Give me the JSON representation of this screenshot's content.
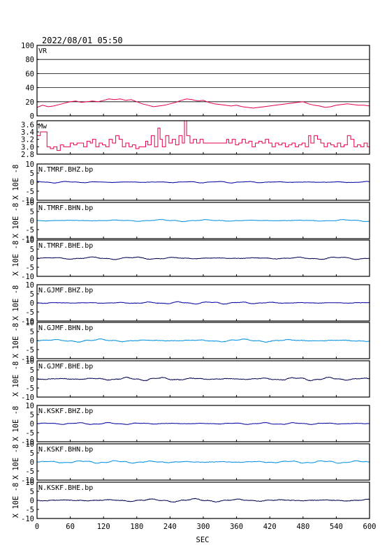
{
  "chart_data": {
    "type": "line",
    "title": "2022/08/01 05:50",
    "xlabel": "SEC",
    "xlim": [
      0,
      600
    ],
    "xticks": [
      "0",
      "60",
      "120",
      "180",
      "240",
      "300",
      "360",
      "420",
      "480",
      "540",
      "600"
    ],
    "colors": {
      "vr_mw": "#e4004a",
      "bhz": "#0000a0",
      "bhn": "#0090e0",
      "bhe": "#000050"
    },
    "panels": [
      {
        "label": "VR",
        "ylim": [
          0,
          100
        ],
        "yticks": [
          "0",
          "20",
          "40",
          "60",
          "80",
          "100"
        ],
        "grid": true,
        "series_color": "vr_mw",
        "points": [
          [
            0,
            12
          ],
          [
            10,
            15
          ],
          [
            20,
            13
          ],
          [
            30,
            14
          ],
          [
            40,
            16
          ],
          [
            50,
            18
          ],
          [
            60,
            20
          ],
          [
            70,
            21
          ],
          [
            80,
            19
          ],
          [
            90,
            20
          ],
          [
            100,
            21
          ],
          [
            110,
            20
          ],
          [
            120,
            22
          ],
          [
            130,
            24
          ],
          [
            140,
            23
          ],
          [
            150,
            24
          ],
          [
            160,
            22
          ],
          [
            170,
            23
          ],
          [
            180,
            20
          ],
          [
            190,
            17
          ],
          [
            200,
            15
          ],
          [
            210,
            13
          ],
          [
            220,
            14
          ],
          [
            230,
            15
          ],
          [
            240,
            17
          ],
          [
            250,
            19
          ],
          [
            260,
            22
          ],
          [
            270,
            24
          ],
          [
            280,
            23
          ],
          [
            290,
            21
          ],
          [
            300,
            22
          ],
          [
            310,
            19
          ],
          [
            320,
            17
          ],
          [
            330,
            16
          ],
          [
            340,
            15
          ],
          [
            350,
            14
          ],
          [
            360,
            15
          ],
          [
            370,
            13
          ],
          [
            380,
            12
          ],
          [
            390,
            11
          ],
          [
            400,
            12
          ],
          [
            410,
            13
          ],
          [
            420,
            14
          ],
          [
            430,
            15
          ],
          [
            440,
            16
          ],
          [
            450,
            17
          ],
          [
            460,
            18
          ],
          [
            470,
            19
          ],
          [
            480,
            20
          ],
          [
            490,
            17
          ],
          [
            500,
            15
          ],
          [
            510,
            14
          ],
          [
            520,
            12
          ],
          [
            530,
            13
          ],
          [
            540,
            15
          ],
          [
            550,
            16
          ],
          [
            560,
            17
          ],
          [
            570,
            16
          ],
          [
            580,
            15
          ],
          [
            590,
            15
          ],
          [
            600,
            14
          ]
        ]
      },
      {
        "label": "Mw",
        "ylim": [
          2.8,
          3.7
        ],
        "yticks": [
          "2.8",
          "3.0",
          "3.2",
          "3.4",
          "3.6"
        ],
        "grid": false,
        "series_color": "vr_mw",
        "points": [
          [
            0,
            3.3
          ],
          [
            6,
            3.4
          ],
          [
            12,
            3.4
          ],
          [
            18,
            3.0
          ],
          [
            24,
            2.95
          ],
          [
            30,
            3.0
          ],
          [
            36,
            2.9
          ],
          [
            42,
            3.05
          ],
          [
            48,
            3.0
          ],
          [
            54,
            3.0
          ],
          [
            60,
            3.1
          ],
          [
            66,
            3.05
          ],
          [
            72,
            3.1
          ],
          [
            78,
            3.1
          ],
          [
            84,
            3.0
          ],
          [
            90,
            3.15
          ],
          [
            96,
            3.1
          ],
          [
            100,
            3.2
          ],
          [
            106,
            3.0
          ],
          [
            112,
            3.1
          ],
          [
            118,
            3.05
          ],
          [
            124,
            3.0
          ],
          [
            130,
            3.2
          ],
          [
            136,
            3.1
          ],
          [
            142,
            3.3
          ],
          [
            148,
            3.2
          ],
          [
            154,
            3.0
          ],
          [
            160,
            3.1
          ],
          [
            166,
            3.0
          ],
          [
            172,
            3.05
          ],
          [
            178,
            2.95
          ],
          [
            184,
            3.0
          ],
          [
            190,
            3.0
          ],
          [
            196,
            3.15
          ],
          [
            200,
            3.05
          ],
          [
            206,
            3.3
          ],
          [
            212,
            3.0
          ],
          [
            218,
            3.5
          ],
          [
            222,
            3.2
          ],
          [
            226,
            3.0
          ],
          [
            232,
            3.3
          ],
          [
            238,
            3.1
          ],
          [
            244,
            3.2
          ],
          [
            250,
            3.05
          ],
          [
            256,
            3.3
          ],
          [
            262,
            3.1
          ],
          [
            266,
            3.7
          ],
          [
            270,
            3.3
          ],
          [
            276,
            3.1
          ],
          [
            282,
            3.2
          ],
          [
            288,
            3.1
          ],
          [
            294,
            3.2
          ],
          [
            300,
            3.1
          ],
          [
            306,
            3.1
          ],
          [
            312,
            3.1
          ],
          [
            318,
            3.1
          ],
          [
            324,
            3.1
          ],
          [
            330,
            3.1
          ],
          [
            336,
            3.1
          ],
          [
            342,
            3.2
          ],
          [
            346,
            3.1
          ],
          [
            352,
            3.2
          ],
          [
            358,
            3.05
          ],
          [
            364,
            3.1
          ],
          [
            370,
            3.2
          ],
          [
            376,
            3.1
          ],
          [
            382,
            3.15
          ],
          [
            388,
            3.0
          ],
          [
            394,
            3.1
          ],
          [
            400,
            3.15
          ],
          [
            406,
            3.1
          ],
          [
            412,
            3.2
          ],
          [
            418,
            3.1
          ],
          [
            424,
            3.0
          ],
          [
            430,
            3.1
          ],
          [
            436,
            3.05
          ],
          [
            442,
            3.1
          ],
          [
            448,
            3.0
          ],
          [
            454,
            3.05
          ],
          [
            460,
            3.1
          ],
          [
            466,
            3.0
          ],
          [
            472,
            3.05
          ],
          [
            478,
            3.1
          ],
          [
            484,
            3.0
          ],
          [
            490,
            3.3
          ],
          [
            494,
            3.1
          ],
          [
            500,
            3.3
          ],
          [
            506,
            3.2
          ],
          [
            512,
            3.1
          ],
          [
            518,
            3.0
          ],
          [
            524,
            3.1
          ],
          [
            530,
            3.05
          ],
          [
            536,
            3.0
          ],
          [
            542,
            3.1
          ],
          [
            548,
            3.0
          ],
          [
            554,
            3.05
          ],
          [
            560,
            3.3
          ],
          [
            566,
            3.2
          ],
          [
            572,
            3.0
          ],
          [
            578,
            3.05
          ],
          [
            584,
            3.0
          ],
          [
            590,
            3.1
          ],
          [
            596,
            3.0
          ],
          [
            600,
            3.1
          ]
        ]
      },
      {
        "label": "N.TMRF.BHZ.bp",
        "ylabel": "X 10E -8",
        "ylim": [
          -10,
          10
        ],
        "yticks": [
          "-10",
          "-5",
          "0",
          "5",
          "10"
        ],
        "grid": false,
        "series_color": "bhz",
        "amplitude": 0.5,
        "seed": 3
      },
      {
        "label": "N.TMRF.BHN.bp",
        "ylabel": "X 10E -8",
        "ylim": [
          -10,
          10
        ],
        "yticks": [
          "-10",
          "-5",
          "0",
          "5",
          "10"
        ],
        "grid": false,
        "series_color": "bhn",
        "amplitude": 0.6,
        "seed": 7
      },
      {
        "label": "N.TMRF.BHE.bp",
        "ylabel": "X 10E -8",
        "ylim": [
          -10,
          10
        ],
        "yticks": [
          "-10",
          "-5",
          "0",
          "5",
          "10"
        ],
        "grid": false,
        "series_color": "bhe",
        "amplitude": 0.8,
        "seed": 11
      },
      {
        "label": "N.GJMF.BHZ.bp",
        "ylabel": "X 10E -8",
        "ylim": [
          -10,
          10
        ],
        "yticks": [
          "-10",
          "-5",
          "0",
          "5",
          "10"
        ],
        "grid": false,
        "series_color": "bhz",
        "amplitude": 0.7,
        "seed": 13
      },
      {
        "label": "N.GJMF.BHN.bp",
        "ylabel": "X 10E -8",
        "ylim": [
          -10,
          10
        ],
        "yticks": [
          "-10",
          "-5",
          "0",
          "5",
          "10"
        ],
        "grid": false,
        "series_color": "bhn",
        "amplitude": 0.9,
        "seed": 17
      },
      {
        "label": "N.GJMF.BHE.bp",
        "ylabel": "X 10E -8",
        "ylim": [
          -10,
          10
        ],
        "yticks": [
          "-10",
          "-5",
          "0",
          "5",
          "10"
        ],
        "grid": false,
        "series_color": "bhe",
        "amplitude": 1.0,
        "seed": 19
      },
      {
        "label": "N.KSKF.BHZ.bp",
        "ylabel": "X 10E -8",
        "ylim": [
          -10,
          10
        ],
        "yticks": [
          "-10",
          "-5",
          "0",
          "5",
          "10"
        ],
        "grid": false,
        "series_color": "bhz",
        "amplitude": 0.6,
        "seed": 23
      },
      {
        "label": "N.KSKF.BHN.bp",
        "ylabel": "X 10E -8",
        "ylim": [
          -10,
          10
        ],
        "yticks": [
          "-10",
          "-5",
          "0",
          "5",
          "10"
        ],
        "grid": false,
        "series_color": "bhn",
        "amplitude": 0.8,
        "seed": 29
      },
      {
        "label": "N.KSKF.BHE.bp",
        "ylabel": "X 10E -8",
        "ylim": [
          -10,
          10
        ],
        "yticks": [
          "-10",
          "-5",
          "0",
          "5",
          "10"
        ],
        "grid": false,
        "series_color": "bhe",
        "amplitude": 1.0,
        "seed": 31
      }
    ]
  }
}
